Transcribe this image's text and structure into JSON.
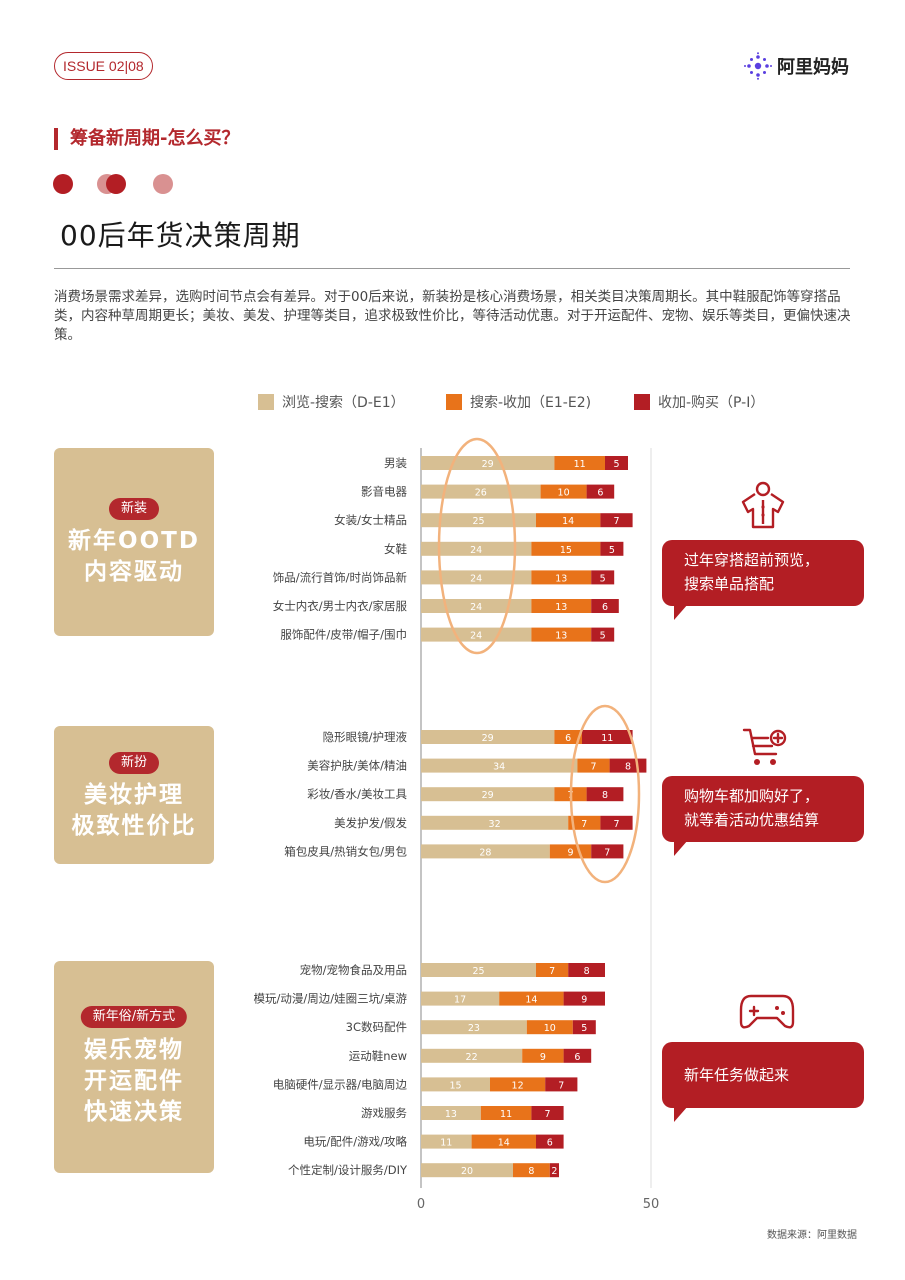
{
  "header": {
    "issue": "ISSUE 02|08",
    "logo_text": "阿里妈妈",
    "section_title": "筹备新周期-怎么买？",
    "page_title": "00后年货决策周期",
    "description": "消费场景需求差异，选购时间节点会有差异。对于00后来说，新装扮是核心消费场景，相关类目决策周期长。其中鞋服配饰等穿搭品类，内容种草周期更长；美妆、美发、护理等类目，追求极致性价比，等待活动优惠。对于开运配件、宠物、娱乐等类目，更偏快速决策。"
  },
  "categories": [
    {
      "badge": "新装",
      "line1": "新年OOTD",
      "line2": "内容驱动",
      "line3": ""
    },
    {
      "badge": "新扮",
      "line1": "美妆护理",
      "line2": "极致性价比",
      "line3": ""
    },
    {
      "badge": "新年俗/新方式",
      "line1": "娱乐宠物",
      "line2": "开运配件",
      "line3": "快速决策"
    }
  ],
  "bubbles": [
    {
      "line1": "过年穿搭超前预览，",
      "line2": "搜索单品搭配",
      "icon": "shirt-icon"
    },
    {
      "line1": "购物车都加购好了，",
      "line2": "就等着活动优惠结算",
      "icon": "cart-icon"
    },
    {
      "line1": "新年任务做起来",
      "line2": "",
      "icon": "gamepad-icon"
    }
  ],
  "source": "数据来源：阿里数据",
  "colors": {
    "brown": "#d7bf93",
    "orange": "#e8731a",
    "red": "#b31e24",
    "accent": "#b3282d",
    "highlight": "#f2b27c"
  },
  "chart_data": {
    "type": "bar",
    "orientation": "horizontal",
    "stacked": true,
    "xlim": [
      0,
      50
    ],
    "xticks": [
      "0",
      "50"
    ],
    "legend": [
      "浏览-搜索（D-E1）",
      "搜索-收加（E1-E2)",
      "收加-购买（P-I）"
    ],
    "legend_position": "top",
    "groups": [
      {
        "categories": [
          "男装",
          "影音电器",
          "女装/女士精品",
          "女鞋",
          "饰品/流行首饰/时尚饰品新",
          "女士内衣/男士内衣/家居服",
          "服饰配件/皮带/帽子/围巾"
        ],
        "series": [
          {
            "values": [
              29,
              26,
              25,
              24,
              24,
              24,
              24
            ]
          },
          {
            "values": [
              11,
              10,
              14,
              15,
              13,
              13,
              13
            ]
          },
          {
            "values": [
              5,
              6,
              7,
              5,
              5,
              6,
              5
            ]
          }
        ]
      },
      {
        "categories": [
          "隐形眼镜/护理液",
          "美容护肤/美体/精油",
          "彩妆/香水/美妆工具",
          "美发护发/假发",
          "箱包皮具/热销女包/男包"
        ],
        "series": [
          {
            "values": [
              29,
              34,
              29,
              32,
              28
            ]
          },
          {
            "values": [
              6,
              7,
              7,
              7,
              9
            ]
          },
          {
            "values": [
              11,
              8,
              8,
              7,
              7
            ]
          }
        ]
      },
      {
        "categories": [
          "宠物/宠物食品及用品",
          "模玩/动漫/周边/娃圈三坑/桌游",
          "3C数码配件",
          "运动鞋new",
          "电脑硬件/显示器/电脑周边",
          "游戏服务",
          "电玩/配件/游戏/攻略",
          "个性定制/设计服务/DIY"
        ],
        "series": [
          {
            "values": [
              25,
              17,
              23,
              22,
              15,
              13,
              11,
              20
            ]
          },
          {
            "values": [
              7,
              14,
              10,
              9,
              12,
              11,
              14,
              8
            ]
          },
          {
            "values": [
              8,
              9,
              5,
              6,
              7,
              7,
              6,
              2
            ]
          }
        ]
      }
    ]
  }
}
